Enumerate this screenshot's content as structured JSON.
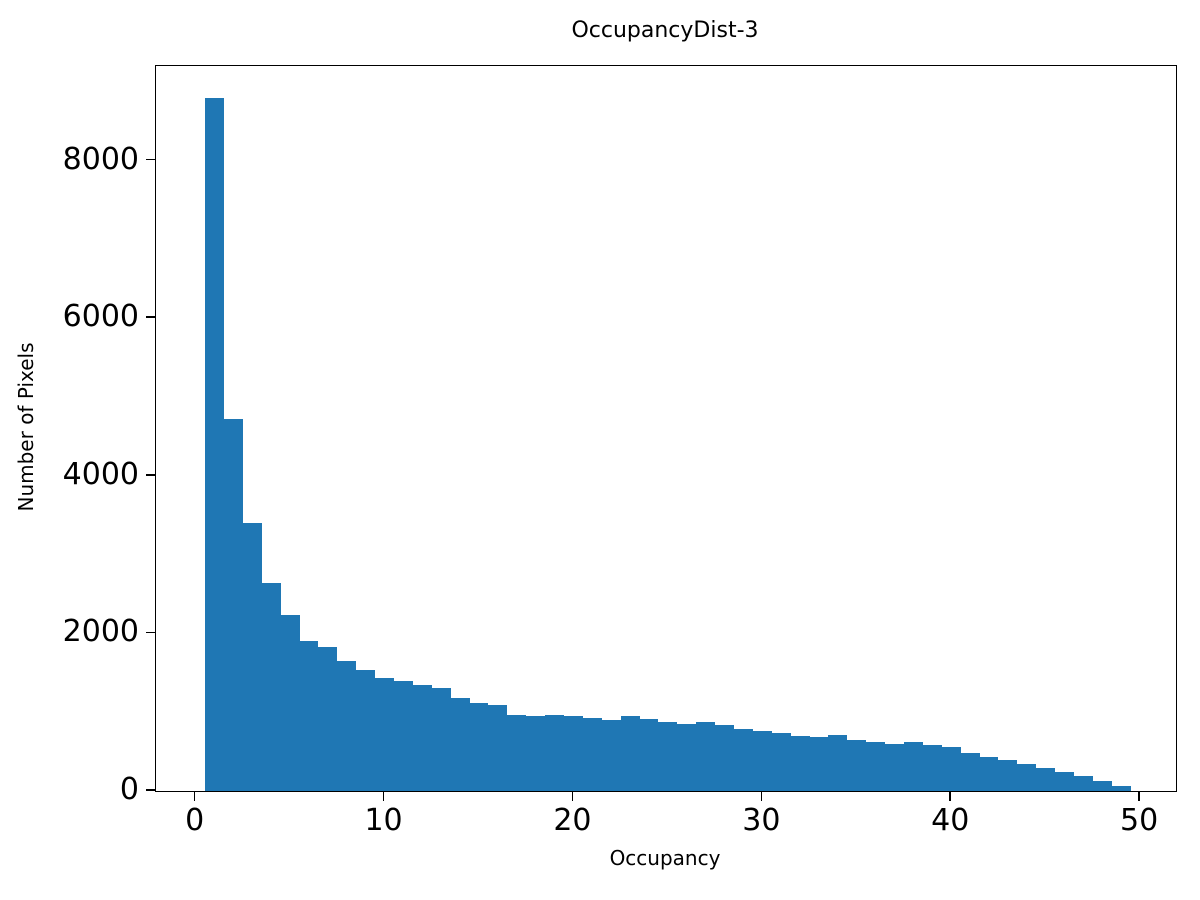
{
  "chart_data": {
    "type": "bar",
    "subtype": "histogram",
    "title": "OccupancyDist-3",
    "xlabel": "Occupancy",
    "ylabel": "Number of Pixels",
    "bar_color": "#1f77b4",
    "bin_start": 0.5,
    "bin_width": 1,
    "values": [
      8800,
      4720,
      3400,
      2640,
      2230,
      1900,
      1830,
      1650,
      1540,
      1430,
      1390,
      1340,
      1310,
      1180,
      1120,
      1090,
      960,
      950,
      970,
      950,
      930,
      900,
      950,
      910,
      870,
      850,
      880,
      840,
      790,
      760,
      730,
      700,
      690,
      710,
      650,
      620,
      600,
      620,
      580,
      560,
      480,
      430,
      390,
      340,
      290,
      240,
      190,
      130,
      60
    ],
    "xlim": [
      -2.1,
      51.9
    ],
    "ylim": [
      0,
      9200
    ],
    "xticks": [
      0,
      10,
      20,
      30,
      40,
      50
    ],
    "yticks": [
      0,
      2000,
      4000,
      6000,
      8000
    ],
    "grid": false,
    "legend_position": "none"
  }
}
